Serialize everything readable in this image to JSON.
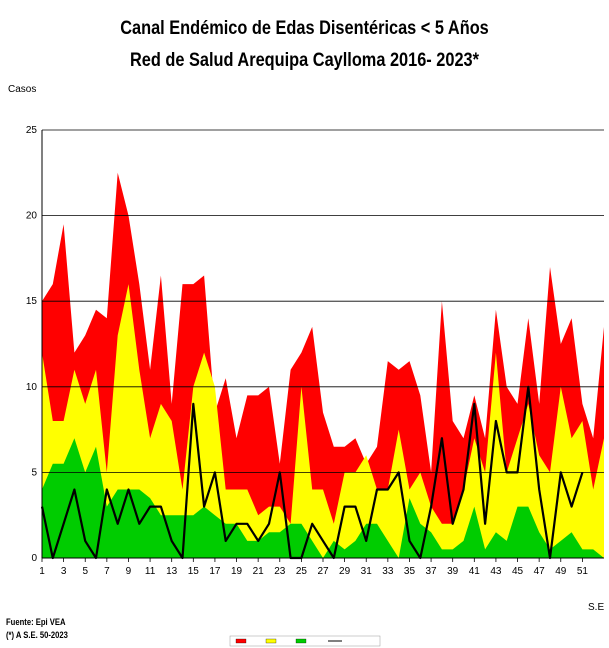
{
  "title_line1": "Canal Endémico de Edas Disentéricas  < 5 Años",
  "title_line2": "Red  de Salud Arequipa Caylloma 2016- 2023*",
  "ylabel": "Casos",
  "xlabel": "S.E",
  "footer_source": "Fuente: Epi VEA",
  "footer_note": "(*) A S.E. 50-2023",
  "colors": {
    "epidemia": "#ff0000",
    "alarma": "#ffff00",
    "seguridad": "#00cc00",
    "actual": "#000000",
    "grid": "#000000"
  },
  "chart_data": {
    "type": "area",
    "xlabel": "S.E",
    "ylabel": "Casos",
    "ylim": [
      0,
      25
    ],
    "yticks": [
      0,
      5,
      10,
      15,
      20,
      25
    ],
    "xlim": [
      1,
      53
    ],
    "xticks": [
      1,
      3,
      5,
      7,
      9,
      11,
      13,
      15,
      17,
      19,
      21,
      23,
      25,
      27,
      29,
      31,
      33,
      35,
      37,
      39,
      41,
      43,
      45,
      47,
      49,
      51
    ],
    "grid": "horizontal",
    "legend": "bottom-center",
    "x": [
      1,
      2,
      3,
      4,
      5,
      6,
      7,
      8,
      9,
      10,
      11,
      12,
      13,
      14,
      15,
      16,
      17,
      18,
      19,
      20,
      21,
      22,
      23,
      24,
      25,
      26,
      27,
      28,
      29,
      30,
      31,
      32,
      33,
      34,
      35,
      36,
      37,
      38,
      39,
      40,
      41,
      42,
      43,
      44,
      45,
      46,
      47,
      48,
      49,
      50,
      51,
      52,
      53
    ],
    "series": [
      {
        "type": "area",
        "values": [
          15,
          16,
          19.5,
          12,
          13,
          14.5,
          14,
          22.5,
          20,
          16,
          11,
          16.5,
          9,
          16,
          16,
          16.5,
          8.5,
          10.5,
          7,
          9.5,
          9.5,
          10,
          5.5,
          11,
          12,
          13.5,
          8.5,
          6.5,
          6.5,
          7,
          5.5,
          6.5,
          11.5,
          11,
          11.5,
          9.5,
          5,
          15,
          8,
          7,
          9.5,
          7,
          14.5,
          10,
          9,
          14,
          9,
          17,
          12.5,
          14,
          9,
          7,
          13.5
        ]
      },
      {
        "type": "area",
        "values": [
          12,
          8,
          8,
          11,
          9,
          11,
          5,
          13,
          16,
          11,
          7,
          9,
          8,
          4,
          10,
          12,
          10,
          4,
          4,
          4,
          2.5,
          3,
          3,
          2,
          10,
          4,
          4,
          2,
          5,
          5,
          6,
          4,
          4,
          7.5,
          4,
          5,
          3,
          2,
          2,
          4,
          7,
          5,
          12,
          5,
          7,
          9,
          6,
          5,
          10,
          7,
          8,
          4,
          7
        ]
      },
      {
        "type": "area",
        "values": [
          4,
          5.5,
          5.5,
          7,
          5,
          6.5,
          3,
          4,
          4,
          4,
          3.5,
          2.5,
          2.5,
          2.5,
          2.5,
          3,
          2.5,
          2,
          2,
          1,
          1,
          1.5,
          1.5,
          2,
          2,
          1,
          0,
          1,
          0.5,
          1,
          2,
          2,
          1,
          0,
          3.5,
          2,
          1.5,
          0.5,
          0.5,
          1,
          3,
          0.5,
          1.5,
          1,
          3,
          3,
          1.5,
          0.5,
          1,
          1.5,
          0.5,
          0.5,
          0
        ]
      },
      {
        "type": "line",
        "values": [
          3,
          0,
          2,
          4,
          1,
          0,
          4,
          2,
          4,
          2,
          3,
          3,
          1,
          0,
          9,
          3,
          5,
          1,
          2,
          2,
          1,
          2,
          5,
          0,
          0,
          2,
          1,
          0,
          3,
          3,
          1,
          4,
          4,
          5,
          1,
          0,
          3,
          7,
          2,
          4,
          9,
          2,
          8,
          5,
          5,
          10,
          4,
          0,
          5,
          3,
          5,
          null,
          null
        ]
      }
    ]
  }
}
